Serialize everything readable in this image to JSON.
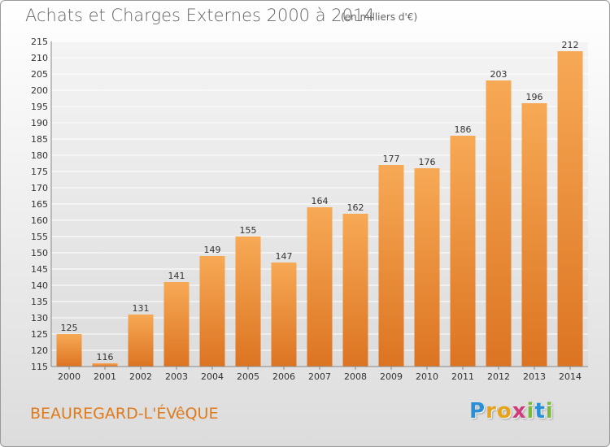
{
  "header": {
    "title": "Achats et Charges Externes 2000 à 2014",
    "unit": "(en milliers d'€)"
  },
  "footer": {
    "commune": "BEAUREGARD-L'ÉVêQUE",
    "logo_letters": [
      {
        "char": "P",
        "color": "#2a8fd6"
      },
      {
        "char": "r",
        "color": "#e8a21a"
      },
      {
        "char": "o",
        "color": "#e8a21a"
      },
      {
        "char": "x",
        "color": "#d23a7a"
      },
      {
        "char": "i",
        "color": "#7cba3a"
      },
      {
        "char": "t",
        "color": "#2a8fd6"
      },
      {
        "char": "i",
        "color": "#7cba3a"
      }
    ]
  },
  "colors": {
    "bar_top": "#f7a955",
    "bar_bottom": "#dc7422",
    "grid": "#ffffff",
    "axis_text": "#333333"
  },
  "chart_data": {
    "type": "bar",
    "categories": [
      "2000",
      "2001",
      "2002",
      "2003",
      "2004",
      "2005",
      "2006",
      "2007",
      "2008",
      "2009",
      "2010",
      "2011",
      "2012",
      "2013",
      "2014"
    ],
    "values": [
      125,
      116,
      131,
      141,
      149,
      155,
      147,
      164,
      162,
      177,
      176,
      186,
      203,
      196,
      212
    ],
    "ylim": [
      115,
      215
    ],
    "ytick_step": 5,
    "grid": true,
    "data_labels": true
  }
}
